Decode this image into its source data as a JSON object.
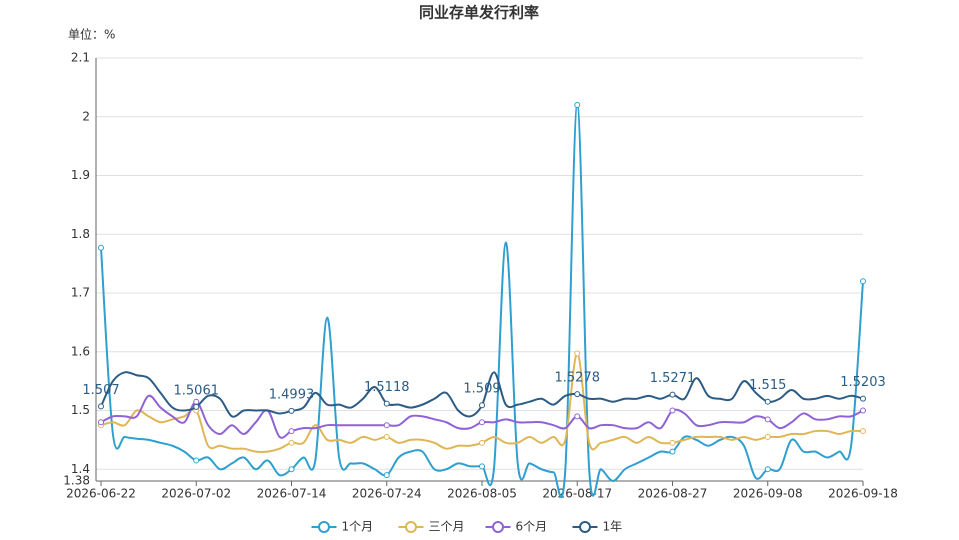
{
  "chart_data": {
    "type": "line",
    "title": "同业存单发行利率",
    "y_unit": "单位：%",
    "categories": [
      "2026-06-22",
      null,
      null,
      null,
      null,
      null,
      null,
      null,
      "2026-07-02",
      null,
      null,
      null,
      null,
      null,
      null,
      null,
      "2026-07-14",
      null,
      null,
      null,
      null,
      null,
      null,
      null,
      "2026-07-24",
      null,
      null,
      null,
      null,
      null,
      null,
      null,
      "2026-08-05",
      null,
      null,
      null,
      null,
      null,
      null,
      null,
      "2026-08-17",
      null,
      null,
      null,
      null,
      null,
      null,
      null,
      "2026-08-27",
      null,
      null,
      null,
      null,
      null,
      null,
      null,
      "2026-09-08",
      null,
      null,
      null,
      null,
      null,
      null,
      null,
      "2026-09-18"
    ],
    "ylim": [
      1.38,
      2.1
    ],
    "yticks": [
      1.38,
      1.4,
      1.5,
      1.6,
      1.7,
      1.8,
      1.9,
      2,
      2.1
    ],
    "grid": true,
    "smooth": true,
    "legend": "bottom",
    "series": [
      {
        "name": "1个月",
        "color": "#2f9fd0",
        "values": [
          1.777,
          1.46,
          1.455,
          1.452,
          1.45,
          1.445,
          1.44,
          1.43,
          1.415,
          1.42,
          1.4,
          1.41,
          1.42,
          1.4,
          1.415,
          1.39,
          1.4,
          1.42,
          1.415,
          1.658,
          1.42,
          1.41,
          1.41,
          1.4,
          1.39,
          1.42,
          1.43,
          1.43,
          1.4,
          1.4,
          1.41,
          1.405,
          1.405,
          1.4,
          1.786,
          1.41,
          1.41,
          1.4,
          1.395,
          1.4,
          2.02,
          1.4,
          1.4,
          1.38,
          1.4,
          1.41,
          1.42,
          1.43,
          1.43,
          1.455,
          1.45,
          1.44,
          1.45,
          1.455,
          1.44,
          1.385,
          1.4,
          1.4,
          1.45,
          1.43,
          1.43,
          1.42,
          1.43,
          1.44,
          1.72
        ]
      },
      {
        "name": "三个月",
        "color": "#e0b556",
        "values": [
          1.475,
          1.48,
          1.475,
          1.5,
          1.49,
          1.48,
          1.485,
          1.49,
          1.5,
          1.44,
          1.44,
          1.435,
          1.435,
          1.43,
          1.43,
          1.435,
          1.445,
          1.445,
          1.475,
          1.45,
          1.45,
          1.445,
          1.455,
          1.45,
          1.455,
          1.445,
          1.45,
          1.45,
          1.445,
          1.435,
          1.44,
          1.44,
          1.445,
          1.455,
          1.445,
          1.445,
          1.455,
          1.445,
          1.455,
          1.45,
          1.597,
          1.445,
          1.445,
          1.45,
          1.455,
          1.445,
          1.455,
          1.445,
          1.445,
          1.45,
          1.455,
          1.455,
          1.455,
          1.45,
          1.455,
          1.45,
          1.455,
          1.455,
          1.46,
          1.46,
          1.465,
          1.465,
          1.46,
          1.465,
          1.465
        ]
      },
      {
        "name": "6个月",
        "color": "#8f62d6",
        "values": [
          1.48,
          1.49,
          1.49,
          1.49,
          1.525,
          1.505,
          1.49,
          1.48,
          1.515,
          1.475,
          1.46,
          1.475,
          1.46,
          1.48,
          1.5,
          1.455,
          1.465,
          1.47,
          1.47,
          1.475,
          1.475,
          1.475,
          1.475,
          1.475,
          1.475,
          1.475,
          1.49,
          1.49,
          1.485,
          1.48,
          1.47,
          1.47,
          1.48,
          1.48,
          1.485,
          1.48,
          1.48,
          1.48,
          1.475,
          1.47,
          1.49,
          1.47,
          1.475,
          1.475,
          1.47,
          1.47,
          1.48,
          1.47,
          1.5,
          1.495,
          1.475,
          1.475,
          1.48,
          1.48,
          1.48,
          1.49,
          1.485,
          1.47,
          1.48,
          1.495,
          1.485,
          1.485,
          1.49,
          1.49,
          1.5
        ]
      },
      {
        "name": "1年",
        "color": "#2c5c85",
        "values": [
          1.507,
          1.55,
          1.565,
          1.56,
          1.555,
          1.53,
          1.505,
          1.5,
          1.5061,
          1.525,
          1.52,
          1.49,
          1.5,
          1.5,
          1.5,
          1.495,
          1.4993,
          1.505,
          1.53,
          1.51,
          1.51,
          1.505,
          1.52,
          1.54,
          1.5118,
          1.51,
          1.505,
          1.51,
          1.52,
          1.53,
          1.5,
          1.49,
          1.509,
          1.565,
          1.51,
          1.51,
          1.515,
          1.52,
          1.51,
          1.525,
          1.5278,
          1.52,
          1.52,
          1.515,
          1.52,
          1.52,
          1.525,
          1.52,
          1.5271,
          1.52,
          1.555,
          1.525,
          1.52,
          1.52,
          1.55,
          1.53,
          1.515,
          1.52,
          1.535,
          1.52,
          1.52,
          1.525,
          1.52,
          1.525,
          1.5203
        ]
      }
    ]
  }
}
